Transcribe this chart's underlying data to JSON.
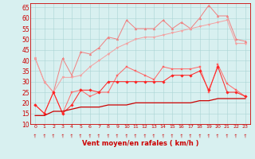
{
  "x": [
    0,
    1,
    2,
    3,
    4,
    5,
    6,
    7,
    8,
    9,
    10,
    11,
    12,
    13,
    14,
    15,
    16,
    17,
    18,
    19,
    20,
    21,
    22,
    23
  ],
  "series": [
    {
      "name": "line1_top",
      "color": "#f08080",
      "linewidth": 0.7,
      "marker": "^",
      "markersize": 2.0,
      "y": [
        41,
        30,
        25,
        41,
        33,
        44,
        43,
        46,
        51,
        50,
        59,
        55,
        55,
        55,
        59,
        55,
        58,
        55,
        60,
        66,
        61,
        61,
        50,
        49
      ]
    },
    {
      "name": "line2_mid_light",
      "color": "#f4a0a0",
      "linewidth": 0.7,
      "marker": "v",
      "markersize": 2.0,
      "y": [
        41,
        30,
        25,
        32,
        32,
        33,
        37,
        40,
        43,
        46,
        48,
        50,
        51,
        51,
        52,
        53,
        54,
        55,
        56,
        57,
        58,
        59,
        48,
        48
      ]
    },
    {
      "name": "line3_mid",
      "color": "#ff6666",
      "linewidth": 0.7,
      "marker": "s",
      "markersize": 2.0,
      "y": [
        19,
        15,
        25,
        15,
        25,
        26,
        23,
        25,
        25,
        33,
        37,
        35,
        33,
        31,
        37,
        36,
        36,
        36,
        37,
        25,
        38,
        29,
        26,
        23
      ]
    },
    {
      "name": "line4_mid_dark",
      "color": "#ff2222",
      "linewidth": 0.7,
      "marker": "D",
      "markersize": 1.8,
      "y": [
        19,
        15,
        25,
        15,
        19,
        26,
        26,
        25,
        30,
        30,
        30,
        30,
        30,
        30,
        30,
        33,
        33,
        33,
        35,
        26,
        37,
        25,
        25,
        23
      ]
    },
    {
      "name": "line5_bottom",
      "color": "#cc0000",
      "linewidth": 0.9,
      "marker": null,
      "markersize": 0,
      "y": [
        14,
        14,
        16,
        16,
        17,
        18,
        18,
        18,
        19,
        19,
        19,
        20,
        20,
        20,
        20,
        20,
        20,
        20,
        21,
        21,
        22,
        22,
        22,
        22
      ]
    }
  ],
  "xlabel": "Vent moyen/en rafales ( km/h )",
  "xlim_min": -0.5,
  "xlim_max": 23.5,
  "ylim_min": 10,
  "ylim_max": 67,
  "yticks": [
    10,
    15,
    20,
    25,
    30,
    35,
    40,
    45,
    50,
    55,
    60,
    65
  ],
  "xticks": [
    0,
    1,
    2,
    3,
    4,
    5,
    6,
    7,
    8,
    9,
    10,
    11,
    12,
    13,
    14,
    15,
    16,
    17,
    18,
    19,
    20,
    21,
    22,
    23
  ],
  "bg_color": "#d8f0f0",
  "grid_color": "#aad4d4",
  "tick_color": "#cc0000",
  "xlabel_color": "#cc0000",
  "xlabel_fontsize": 6,
  "ytick_fontsize": 5.5,
  "xtick_fontsize": 4.5,
  "spine_color": "#cc0000",
  "arrow_symbol": "↗"
}
